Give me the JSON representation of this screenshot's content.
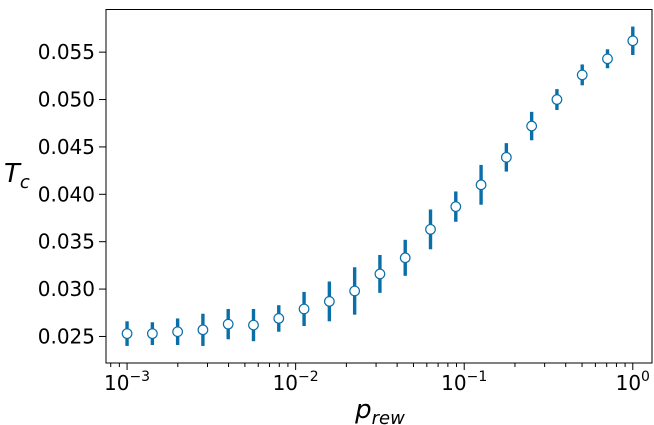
{
  "chart_data": {
    "type": "scatter",
    "xscale": "log",
    "xlim": [
      0.00075,
      1.3
    ],
    "ylim": [
      0.0222,
      0.0595
    ],
    "xlabel": {
      "base": "p",
      "sub": "rew"
    },
    "ylabel": {
      "base": "T",
      "sub": "c"
    },
    "x_ticks": [
      {
        "value": 0.001,
        "base": "10",
        "exp": "−3"
      },
      {
        "value": 0.01,
        "base": "10",
        "exp": "−2"
      },
      {
        "value": 0.1,
        "base": "10",
        "exp": "−1"
      },
      {
        "value": 1,
        "base": "10",
        "exp": "0"
      }
    ],
    "y_ticks": [
      {
        "value": 0.025,
        "label": "0.025"
      },
      {
        "value": 0.03,
        "label": "0.030"
      },
      {
        "value": 0.035,
        "label": "0.035"
      },
      {
        "value": 0.04,
        "label": "0.040"
      },
      {
        "value": 0.045,
        "label": "0.045"
      },
      {
        "value": 0.05,
        "label": "0.050"
      },
      {
        "value": 0.055,
        "label": "0.055"
      }
    ],
    "grid": false,
    "colors": {
      "errorbar": "#0a6fa8",
      "marker_edge": "#0a6fa8",
      "marker_fill": "#ffffff"
    },
    "series": [
      {
        "points": [
          {
            "x": 0.001,
            "y": 0.0253,
            "err": 0.0013
          },
          {
            "x": 0.001413,
            "y": 0.0253,
            "err": 0.0012
          },
          {
            "x": 0.001995,
            "y": 0.0255,
            "err": 0.0014
          },
          {
            "x": 0.002818,
            "y": 0.0257,
            "err": 0.0017
          },
          {
            "x": 0.003981,
            "y": 0.0263,
            "err": 0.0016
          },
          {
            "x": 0.005623,
            "y": 0.0262,
            "err": 0.0017
          },
          {
            "x": 0.007943,
            "y": 0.0269,
            "err": 0.0014
          },
          {
            "x": 0.01122,
            "y": 0.0279,
            "err": 0.0018
          },
          {
            "x": 0.01585,
            "y": 0.0287,
            "err": 0.0021
          },
          {
            "x": 0.02239,
            "y": 0.0298,
            "err": 0.0025
          },
          {
            "x": 0.03162,
            "y": 0.0316,
            "err": 0.002
          },
          {
            "x": 0.04467,
            "y": 0.0333,
            "err": 0.0019
          },
          {
            "x": 0.0631,
            "y": 0.0363,
            "err": 0.0021
          },
          {
            "x": 0.08913,
            "y": 0.0387,
            "err": 0.0016
          },
          {
            "x": 0.1259,
            "y": 0.041,
            "err": 0.0021
          },
          {
            "x": 0.1778,
            "y": 0.0439,
            "err": 0.0015
          },
          {
            "x": 0.2512,
            "y": 0.0472,
            "err": 0.0015
          },
          {
            "x": 0.3548,
            "y": 0.05,
            "err": 0.0011
          },
          {
            "x": 0.5012,
            "y": 0.0526,
            "err": 0.0011
          },
          {
            "x": 0.7079,
            "y": 0.0543,
            "err": 0.001
          },
          {
            "x": 1.0,
            "y": 0.0562,
            "err": 0.0015
          }
        ]
      }
    ]
  }
}
